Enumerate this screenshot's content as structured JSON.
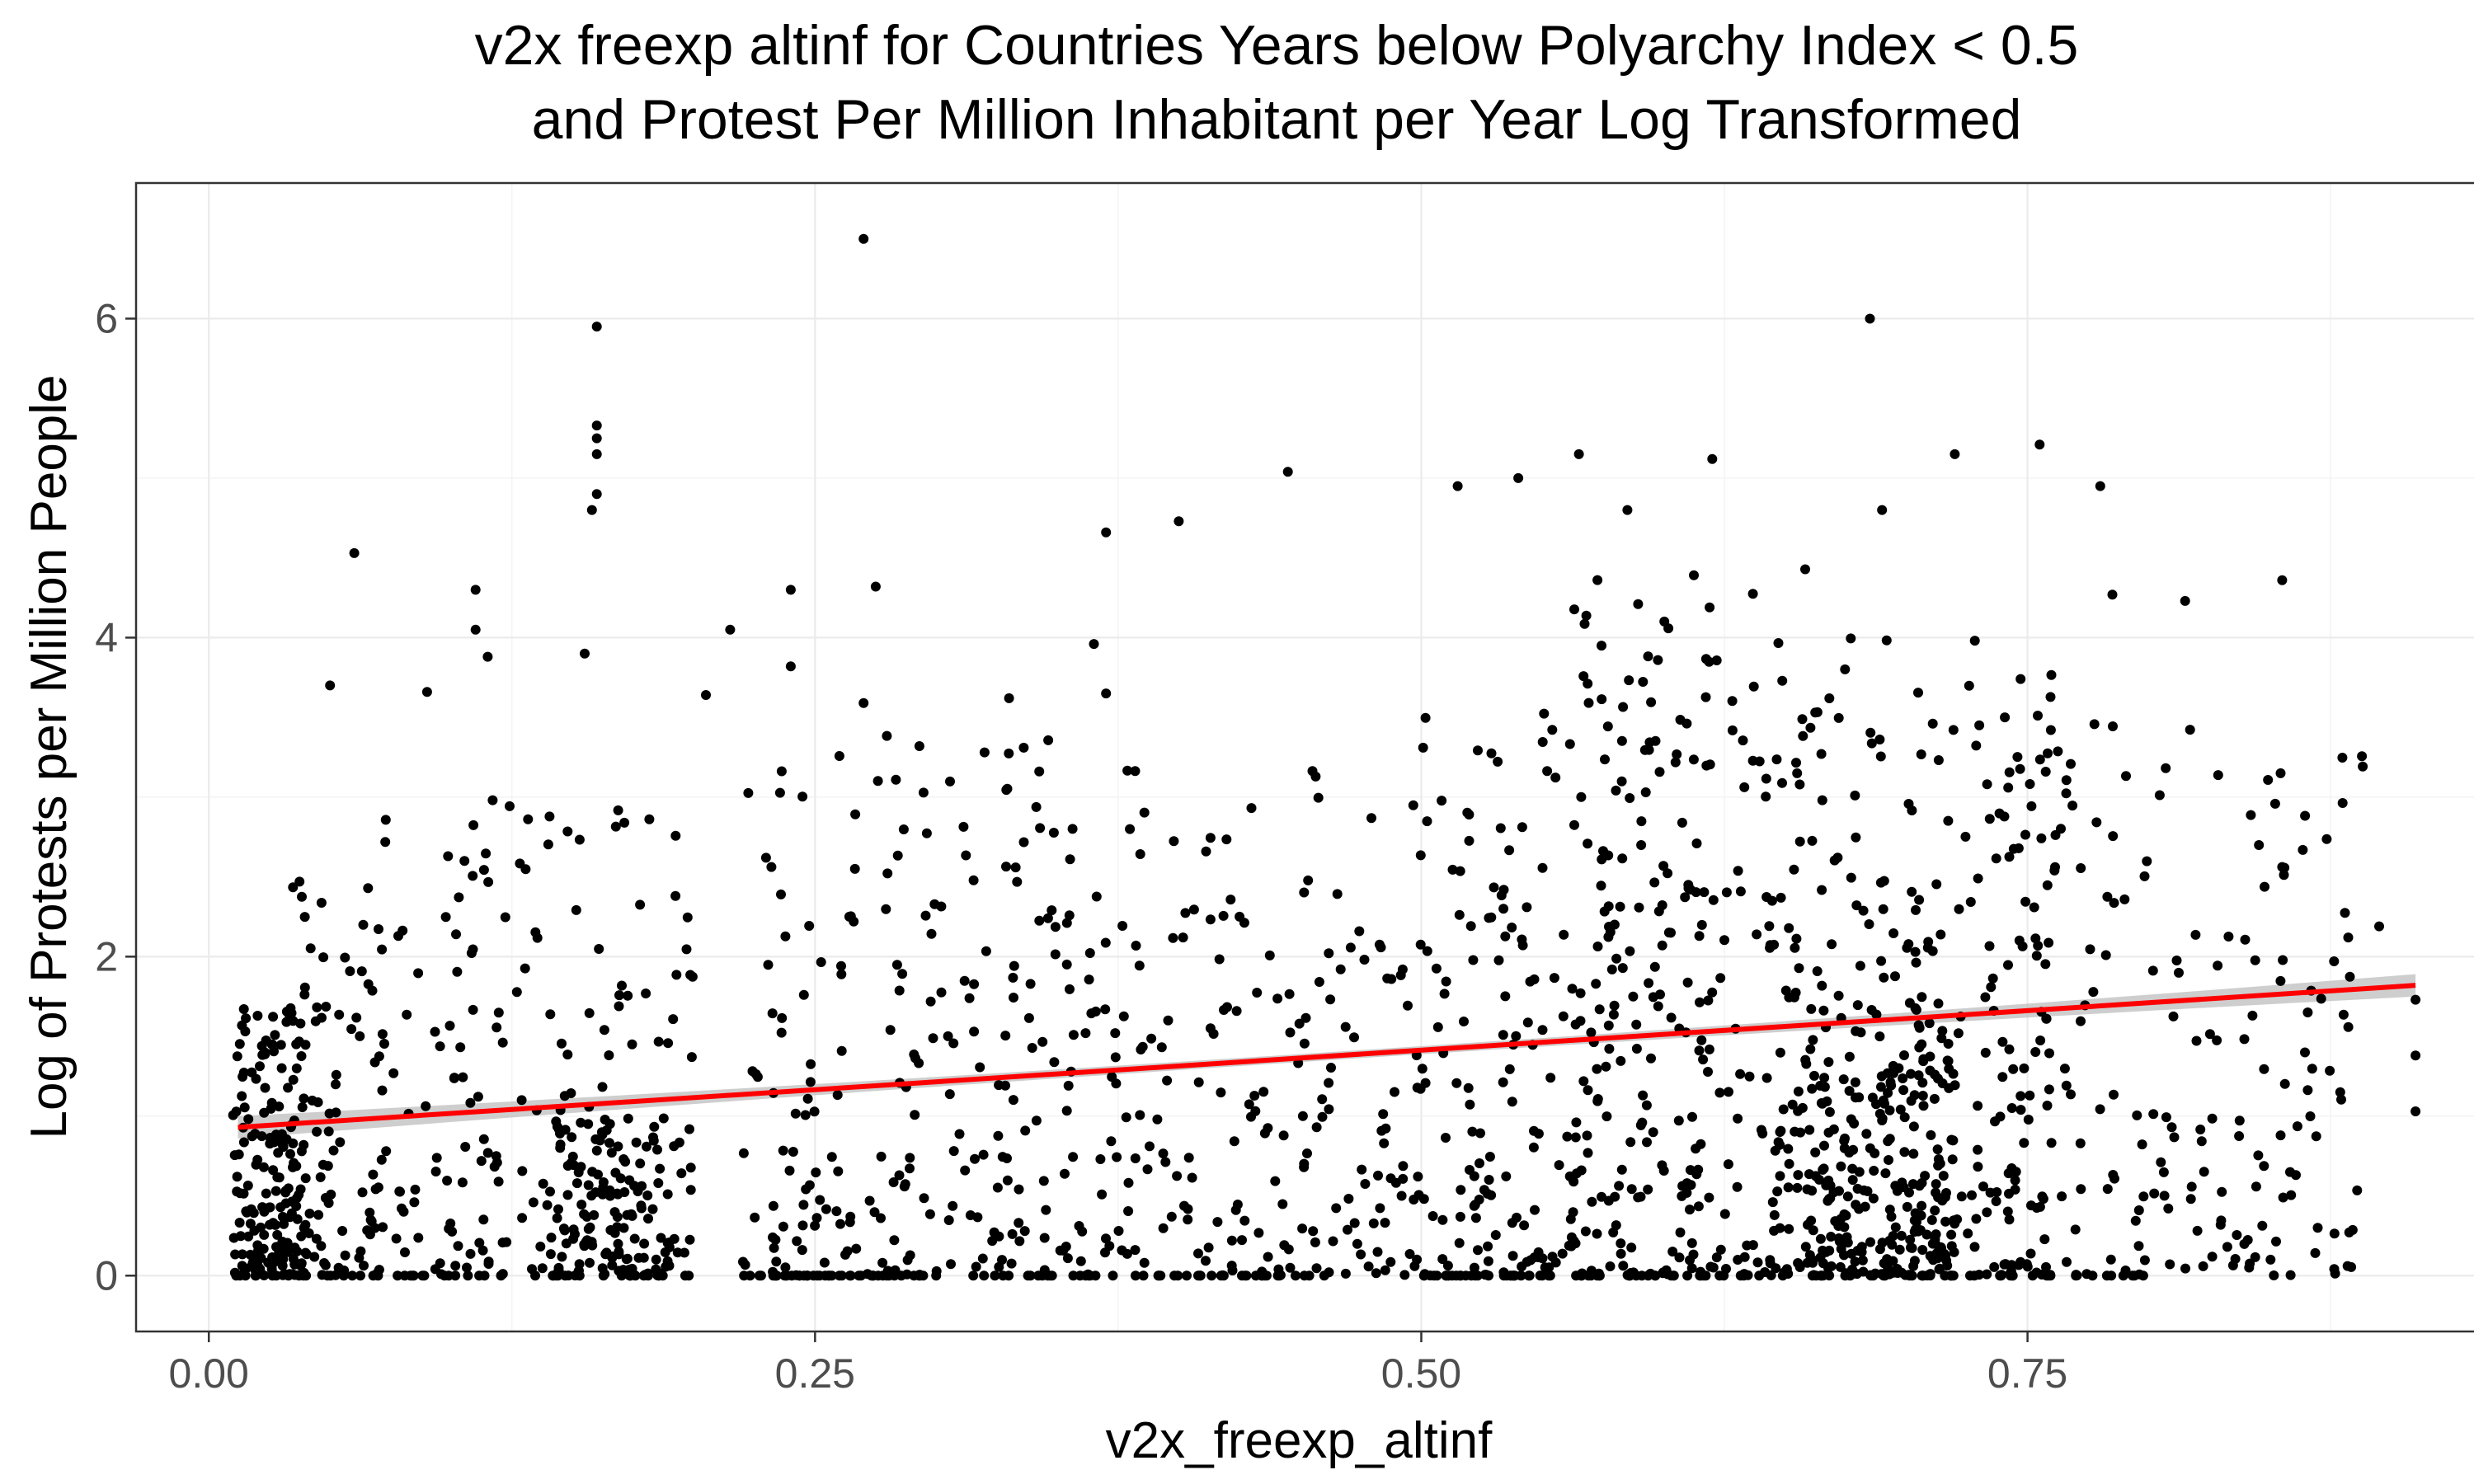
{
  "chart_data": {
    "type": "scatter",
    "title": [
      "v2x freexp altinf for Countries Years below Polyarchy Index < 0.5",
      "and Protest Per Million Inhabitant per Year Log Transformed"
    ],
    "xlabel": "v2x_freexp_altinf",
    "ylabel": "Log of Protests per Million People",
    "xlim": [
      -0.03,
      0.945
    ],
    "ylim": [
      -0.35,
      6.85
    ],
    "x_ticks": [
      0.0,
      0.25,
      0.5,
      0.75
    ],
    "x_tick_labels": [
      "0.00",
      "0.25",
      "0.50",
      "0.75"
    ],
    "y_ticks": [
      0,
      2,
      4,
      6
    ],
    "y_tick_labels": [
      "0",
      "2",
      "4",
      "6"
    ],
    "grid": true,
    "point_color": "#000000",
    "fit": {
      "method": "linear",
      "color": "#ff0000",
      "band_color": "#bebebe",
      "points": [
        [
          0.012,
          0.93
        ],
        [
          0.91,
          1.82
        ]
      ],
      "ci_halfwidth_ends": 0.07,
      "ci_halfwidth_mid": 0.025
    },
    "highlighted_points": [
      [
        0.27,
        6.5
      ],
      [
        0.685,
        6.0
      ],
      [
        0.16,
        5.95
      ],
      [
        0.16,
        5.33
      ],
      [
        0.16,
        5.25
      ],
      [
        0.16,
        5.15
      ],
      [
        0.16,
        4.9
      ],
      [
        0.158,
        4.8
      ],
      [
        0.06,
        4.53
      ],
      [
        0.11,
        4.3
      ],
      [
        0.11,
        4.05
      ],
      [
        0.115,
        3.88
      ],
      [
        0.155,
        3.9
      ],
      [
        0.215,
        4.05
      ],
      [
        0.24,
        4.3
      ],
      [
        0.24,
        3.82
      ],
      [
        0.275,
        4.32
      ],
      [
        0.4,
        4.73
      ],
      [
        0.37,
        4.66
      ],
      [
        0.445,
        5.04
      ],
      [
        0.515,
        4.95
      ],
      [
        0.54,
        5.0
      ],
      [
        0.565,
        5.15
      ],
      [
        0.585,
        4.8
      ],
      [
        0.62,
        5.12
      ],
      [
        0.72,
        5.15
      ],
      [
        0.755,
        5.21
      ],
      [
        0.78,
        4.95
      ],
      [
        0.69,
        4.8
      ],
      [
        0.785,
        4.27
      ],
      [
        0.855,
        4.36
      ],
      [
        0.815,
        4.23
      ],
      [
        0.05,
        3.7
      ],
      [
        0.09,
        3.66
      ],
      [
        0.27,
        3.59
      ],
      [
        0.33,
        3.62
      ],
      [
        0.365,
        3.96
      ],
      [
        0.37,
        3.65
      ],
      [
        0.205,
        3.64
      ],
      [
        0.91,
        1.73
      ],
      [
        0.91,
        1.38
      ],
      [
        0.91,
        1.03
      ],
      [
        0.895,
        2.19
      ]
    ],
    "point_layout": {
      "description": "Dense cloud of ~2000 country-year points across x from 0.01 to 0.91 and y from 0 to ~4.5, with a row of points at y = 0",
      "clusters": [
        {
          "x": [
            0.01,
            0.04
          ],
          "y": [
            0.0,
            1.7
          ],
          "n": 170
        },
        {
          "x": [
            0.03,
            0.07
          ],
          "y": [
            0.0,
            2.5
          ],
          "n": 90
        },
        {
          "x": [
            0.07,
            0.2
          ],
          "y": [
            0.0,
            3.0
          ],
          "n": 210
        },
        {
          "x": [
            0.14,
            0.19
          ],
          "y": [
            0.0,
            1.0
          ],
          "n": 90
        },
        {
          "x": [
            0.22,
            0.35
          ],
          "y": [
            0.0,
            3.4
          ],
          "n": 200
        },
        {
          "x": [
            0.35,
            0.5
          ],
          "y": [
            0.0,
            3.2
          ],
          "n": 220
        },
        {
          "x": [
            0.5,
            0.62
          ],
          "y": [
            0.0,
            3.6
          ],
          "n": 230
        },
        {
          "x": [
            0.56,
            0.66
          ],
          "y": [
            0.0,
            4.5
          ],
          "n": 150
        },
        {
          "x": [
            0.64,
            0.76
          ],
          "y": [
            0.0,
            4.0
          ],
          "n": 330
        },
        {
          "x": [
            0.66,
            0.72
          ],
          "y": [
            0.0,
            1.6
          ],
          "n": 160
        },
        {
          "x": [
            0.74,
            0.89
          ],
          "y": [
            0.0,
            3.5
          ],
          "n": 190
        }
      ],
      "zero_row_x_ranges": [
        [
          0.01,
          0.2
        ],
        [
          0.22,
          0.3
        ],
        [
          0.31,
          0.46
        ],
        [
          0.5,
          0.6
        ],
        [
          0.6,
          0.8
        ]
      ],
      "zero_row_n": 230
    }
  }
}
